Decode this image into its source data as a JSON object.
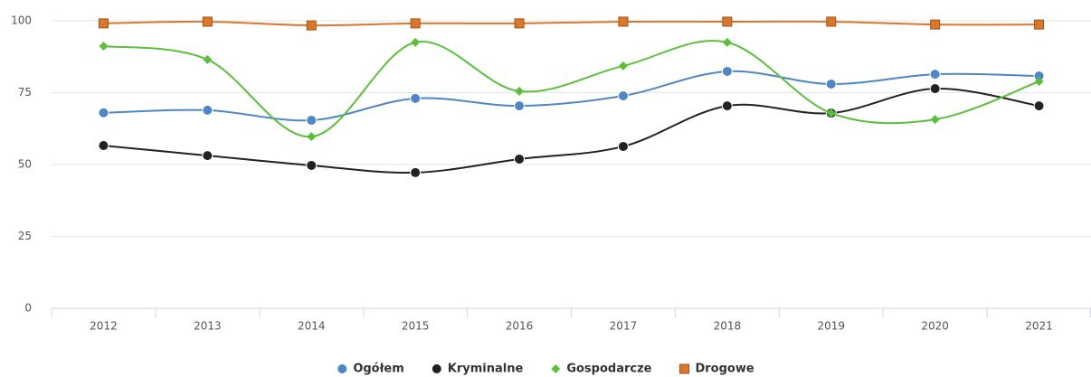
{
  "chart_data": {
    "type": "line",
    "smooth": true,
    "categories": [
      "2012",
      "2013",
      "2014",
      "2015",
      "2016",
      "2017",
      "2018",
      "2019",
      "2020",
      "2021"
    ],
    "ylim": [
      0,
      100
    ],
    "yticks": [
      0,
      25,
      50,
      75,
      100
    ],
    "grid": true,
    "legend": "bottom",
    "series": [
      {
        "name": "Ogółem",
        "color": "#4f86c6",
        "marker": "circle",
        "values": [
          68,
          68.9,
          65.4,
          73,
          70.4,
          73.9,
          82.4,
          78,
          81.4,
          80.8
        ]
      },
      {
        "name": "Kryminalne",
        "color": "#222222",
        "marker": "circle",
        "values": [
          56.6,
          53.1,
          49.7,
          47.2,
          51.9,
          56.3,
          70.4,
          67.9,
          76.4,
          70.4
        ]
      },
      {
        "name": "Gospodarcze",
        "color": "#5cbf3c",
        "marker": "diamond",
        "values": [
          91.2,
          86.5,
          59.7,
          92.5,
          75.5,
          84.3,
          92.5,
          67.9,
          65.7,
          78.9
        ]
      },
      {
        "name": "Drogowe",
        "color": "#d9772b",
        "marker": "square",
        "values": [
          99.1,
          99.7,
          98.4,
          99.1,
          99.1,
          99.7,
          99.7,
          99.7,
          98.7,
          98.7
        ]
      }
    ]
  }
}
